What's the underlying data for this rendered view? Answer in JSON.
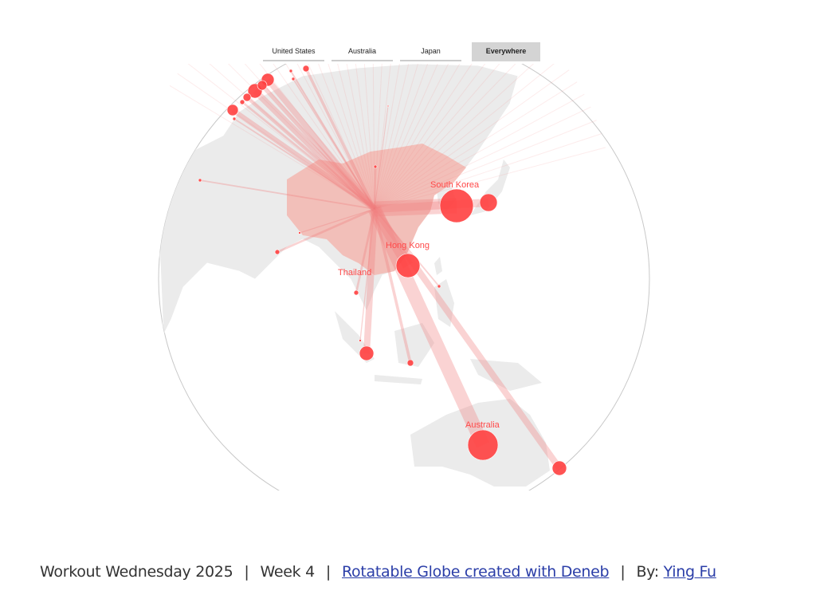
{
  "tabs": [
    {
      "label": "United States",
      "active": false
    },
    {
      "label": "Australia",
      "active": false
    },
    {
      "label": "Japan",
      "active": false
    },
    {
      "label": "Everywhere",
      "active": true
    }
  ],
  "colors": {
    "bubble": "#ff4040",
    "flow": "#f08080",
    "land": "#ebebeb",
    "highlight": "#f4b4ad",
    "link": "#2b3ea8"
  },
  "map": {
    "projection": "orthographic globe",
    "origin": "China",
    "labels": [
      {
        "name": "South Korea"
      },
      {
        "name": "Hong Kong"
      },
      {
        "name": "Thailand"
      },
      {
        "name": "Australia"
      }
    ]
  },
  "footer": {
    "title": "Workout Wednesday 2025",
    "week": "Week 4",
    "link_text": "Rotatable Globe created with Deneb",
    "by_label": "By:",
    "author": "Ying Fu"
  }
}
